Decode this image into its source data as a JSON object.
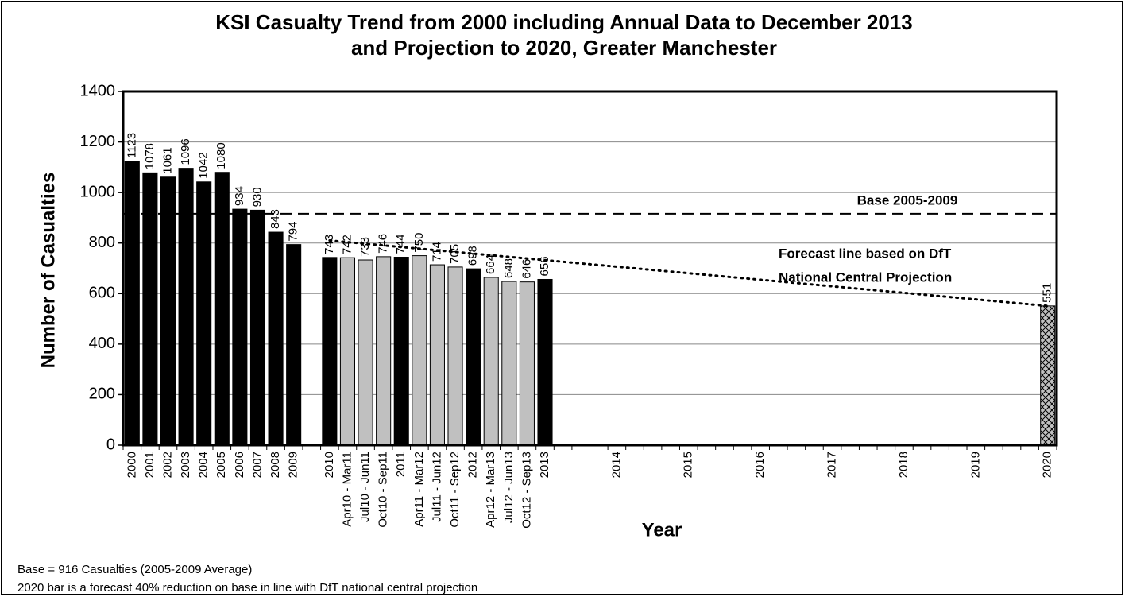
{
  "chart_data": {
    "type": "bar",
    "title": [
      "KSI Casualty Trend from 2000 including Annual Data to December 2013",
      "and Projection to 2020, Greater Manchester"
    ],
    "ylabel": "Number of Casualties",
    "xlabel": "Year",
    "categories": [
      "2000",
      "2001",
      "2002",
      "2003",
      "2004",
      "2005",
      "2006",
      "2007",
      "2008",
      "2009",
      null,
      "2010",
      "Apr10 - Mar11",
      "Jul10 - Jun11",
      "Oct10 - Sep11",
      "2011",
      "Apr11 - Mar12",
      "Jul11 - Jun12",
      "Oct11 - Sep12",
      "2012",
      "Apr12 - Mar13",
      "Jul12 - Jun13",
      "Oct12 - Sep13",
      "2013",
      null,
      null,
      null,
      "2014",
      null,
      null,
      null,
      "2015",
      null,
      null,
      null,
      "2016",
      null,
      null,
      null,
      "2017",
      null,
      null,
      null,
      "2018",
      null,
      null,
      null,
      "2019",
      null,
      null,
      null,
      "2020"
    ],
    "values": [
      1123,
      1078,
      1061,
      1096,
      1042,
      1080,
      934,
      930,
      843,
      794,
      null,
      743,
      742,
      733,
      746,
      744,
      750,
      714,
      705,
      698,
      664,
      648,
      646,
      656,
      null,
      null,
      null,
      null,
      null,
      null,
      null,
      null,
      null,
      null,
      null,
      null,
      null,
      null,
      null,
      null,
      null,
      null,
      null,
      null,
      null,
      null,
      null,
      null,
      null,
      null,
      null,
      551
    ],
    "colors": [
      "#000000",
      "#000000",
      "#000000",
      "#000000",
      "#000000",
      "#000000",
      "#000000",
      "#000000",
      "#000000",
      "#000000",
      null,
      "#000000",
      "#c0c0c0",
      "#c0c0c0",
      "#c0c0c0",
      "#000000",
      "#c0c0c0",
      "#c0c0c0",
      "#c0c0c0",
      "#000000",
      "#c0c0c0",
      "#c0c0c0",
      "#c0c0c0",
      "#000000",
      null,
      null,
      null,
      null,
      null,
      null,
      null,
      null,
      null,
      null,
      null,
      null,
      null,
      null,
      null,
      null,
      null,
      null,
      null,
      null,
      null,
      null,
      null,
      null,
      null,
      null,
      null,
      "#c0c0c0"
    ],
    "hatched_categories": [
      "2020"
    ],
    "ylim": [
      0,
      1400
    ],
    "yticks": [
      0,
      200,
      400,
      600,
      800,
      1000,
      1200,
      1400
    ],
    "grid": true,
    "base_line": {
      "value": 916,
      "label": "Base 2005-2009"
    },
    "forecast": {
      "from": "2010",
      "to": "2020",
      "values": [
        810,
        551
      ],
      "label": [
        "Forecast line based on DfT",
        "National Central Projection"
      ]
    },
    "notes": [
      "Base = 916 Casualties (2005-2009 Average)",
      "2020 bar is a forecast 40% reduction on base in line with DfT national central projection"
    ]
  }
}
